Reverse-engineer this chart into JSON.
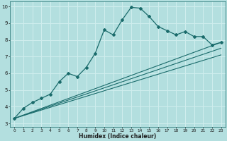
{
  "title": "",
  "xlabel": "Humidex (Indice chaleur)",
  "xlim": [
    -0.5,
    23.5
  ],
  "ylim": [
    2.8,
    10.3
  ],
  "xticks": [
    0,
    1,
    2,
    3,
    4,
    5,
    6,
    7,
    8,
    9,
    10,
    11,
    12,
    13,
    14,
    15,
    16,
    17,
    18,
    19,
    20,
    21,
    22,
    23
  ],
  "yticks": [
    3,
    4,
    5,
    6,
    7,
    8,
    9,
    10
  ],
  "bg_color": "#b3dfdf",
  "grid_color": "#d0eeee",
  "line_color": "#1a6b6b",
  "line1_x": [
    0,
    1,
    2,
    3,
    4,
    5,
    6,
    7,
    8,
    9,
    10,
    11,
    12,
    13,
    14,
    15,
    16,
    17,
    18,
    19,
    20,
    21,
    22,
    23
  ],
  "line1_y": [
    3.3,
    3.9,
    4.25,
    4.5,
    4.75,
    5.5,
    6.0,
    5.8,
    6.35,
    7.2,
    8.6,
    8.3,
    9.2,
    9.95,
    9.9,
    9.4,
    8.8,
    8.55,
    8.3,
    8.5,
    8.2,
    8.2,
    7.7,
    7.85
  ],
  "line2_x": [
    0,
    23
  ],
  "line2_y": [
    3.3,
    7.85
  ],
  "line3_x": [
    0,
    23
  ],
  "line3_y": [
    3.3,
    7.5
  ],
  "line4_x": [
    0,
    23
  ],
  "line4_y": [
    3.3,
    7.1
  ]
}
